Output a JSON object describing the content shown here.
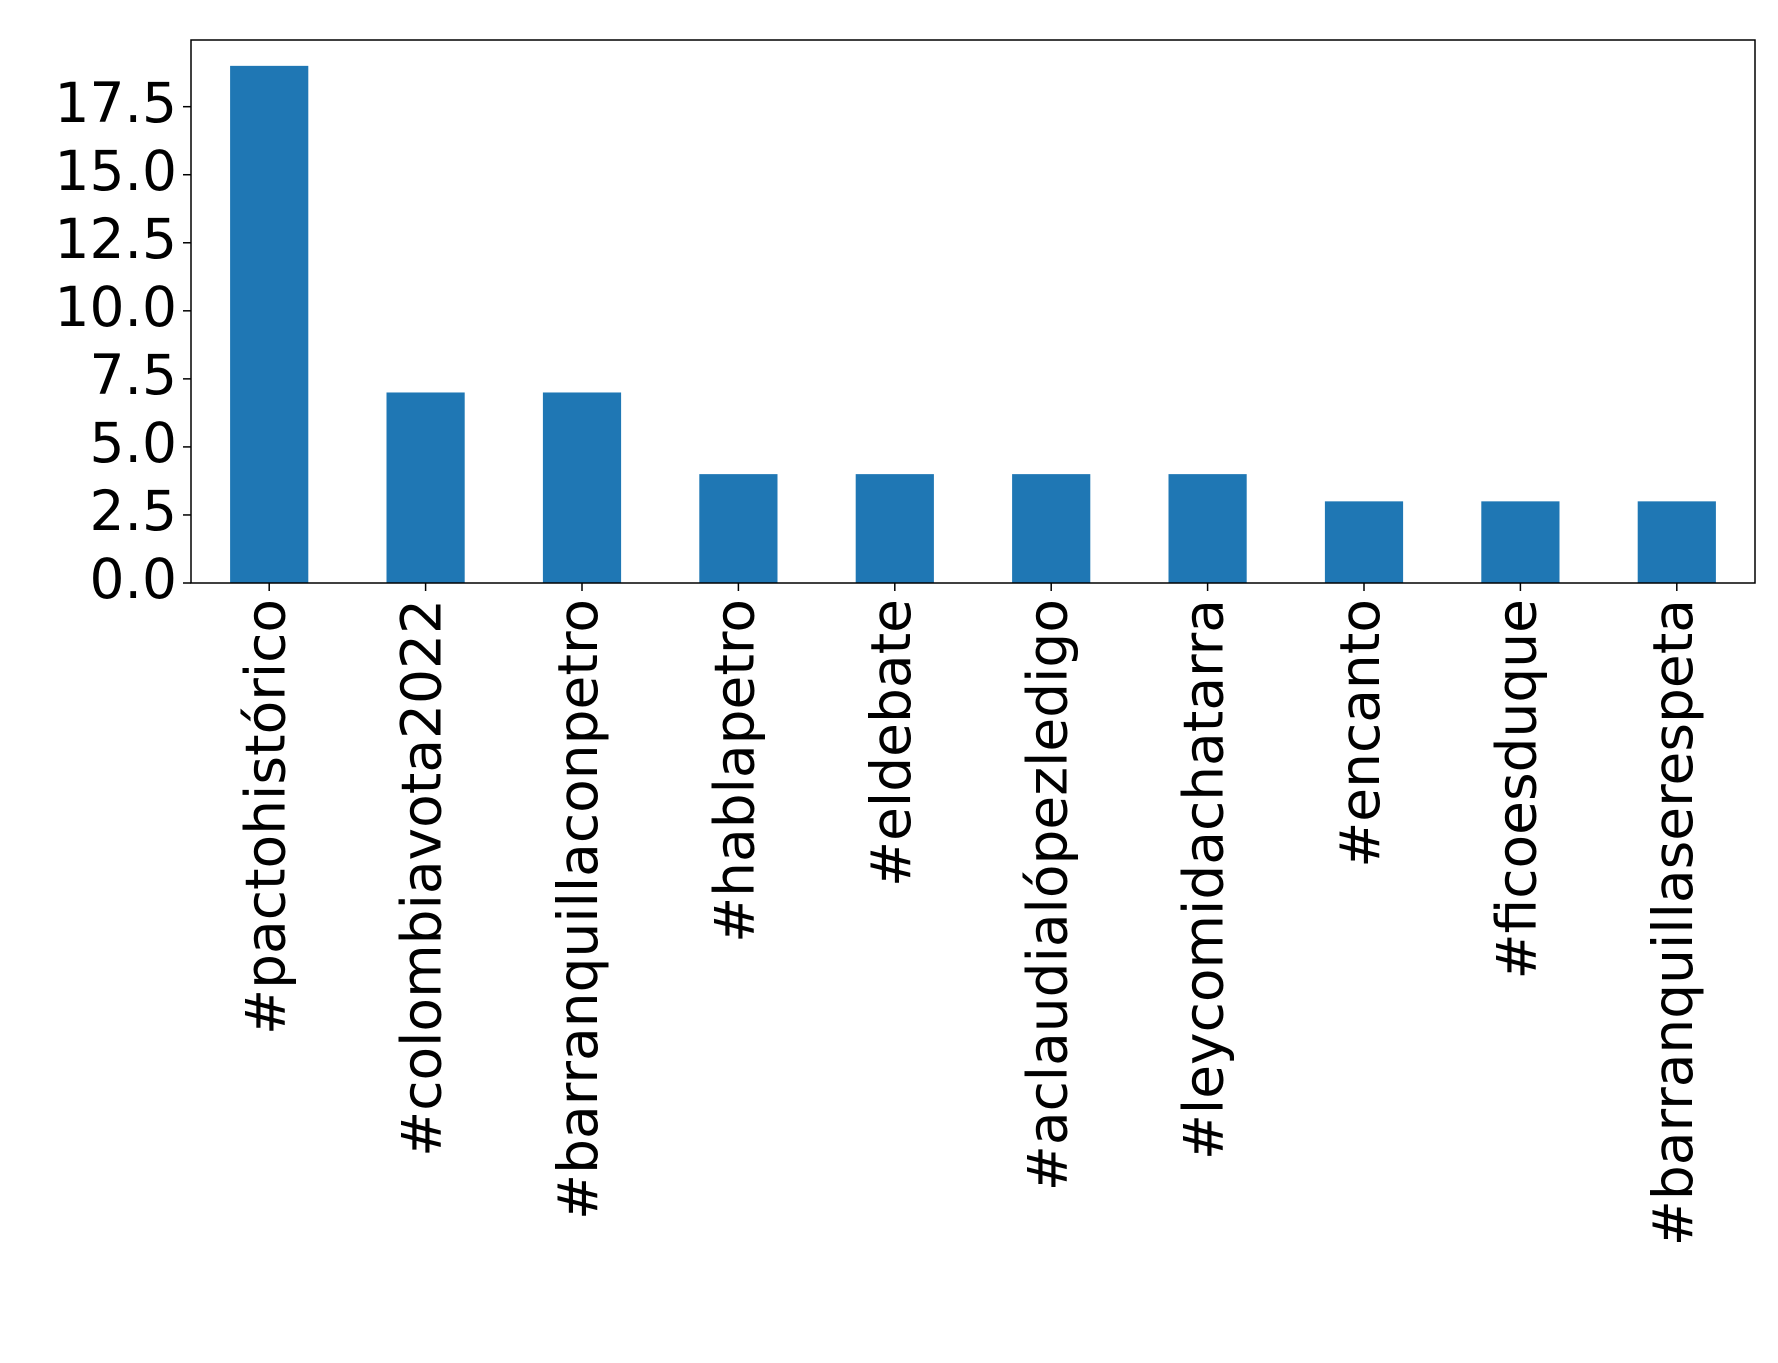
{
  "chart_data": {
    "type": "bar",
    "categories": [
      "#pactohistórico",
      "#colombiavota2022",
      "#barranquillaconpetro",
      "#hablapetro",
      "#eldebate",
      "#aclaudialópezledigo",
      "#leycomidachatarra",
      "#encanto",
      "#ficoesduque",
      "#barranquillaserespeta"
    ],
    "values": [
      19,
      7,
      7,
      4,
      4,
      4,
      4,
      3,
      3,
      3
    ],
    "color": "#1f77b4",
    "ylim": [
      0,
      19.95
    ],
    "yticks": [
      {
        "value": 0,
        "label": "0.0"
      },
      2.5,
      {
        "value": 5,
        "label": "5.0"
      },
      7.5,
      {
        "value": 10,
        "label": "10.0"
      },
      12.5,
      {
        "value": 15,
        "label": "15.0"
      },
      17.5
    ],
    "grid": false
  }
}
